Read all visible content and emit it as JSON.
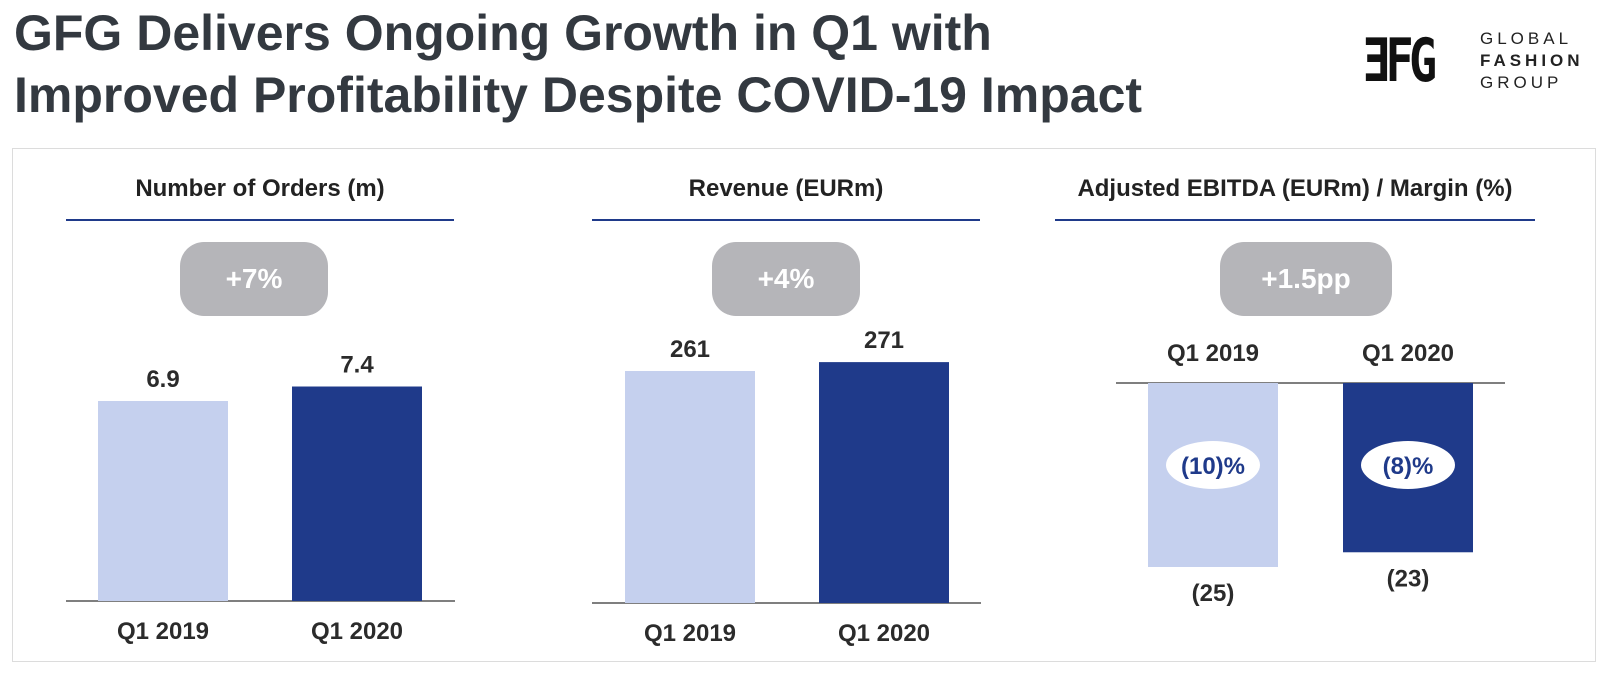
{
  "title": {
    "line1": "GFG Delivers Ongoing Growth in Q1 with",
    "line2": "Improved Profitability Despite COVID-19 Impact"
  },
  "logo": {
    "mark": "ƎFG",
    "words": [
      "GLOBAL",
      "FASHION",
      "GROUP"
    ]
  },
  "colors": {
    "q1_2019": "#c5d0ee",
    "q1_2020": "#1f3a8a",
    "rule": "#1f3a8a",
    "pill": "#b5b5b9",
    "margin_text": "#1f3a8a"
  },
  "chart_data": [
    {
      "type": "bar",
      "title": "Number of Orders (m)",
      "badge": "+7%",
      "categories": [
        "Q1 2019",
        "Q1 2020"
      ],
      "values": [
        6.9,
        7.4
      ],
      "labels": [
        "6.9",
        "7.4"
      ]
    },
    {
      "type": "bar",
      "title": "Revenue (EURm)",
      "badge": "+4%",
      "categories": [
        "Q1 2019",
        "Q1 2020"
      ],
      "values": [
        261,
        271
      ],
      "labels": [
        "261",
        "271"
      ]
    },
    {
      "type": "bar",
      "title": "Adjusted EBITDA (EURm) / Margin (%)",
      "badge": "+1.5pp",
      "categories": [
        "Q1 2019",
        "Q1 2020"
      ],
      "values": [
        -25,
        -23
      ],
      "labels": [
        "(25)",
        "(23)"
      ],
      "margins": [
        "(10)%",
        "(8)%"
      ]
    }
  ]
}
